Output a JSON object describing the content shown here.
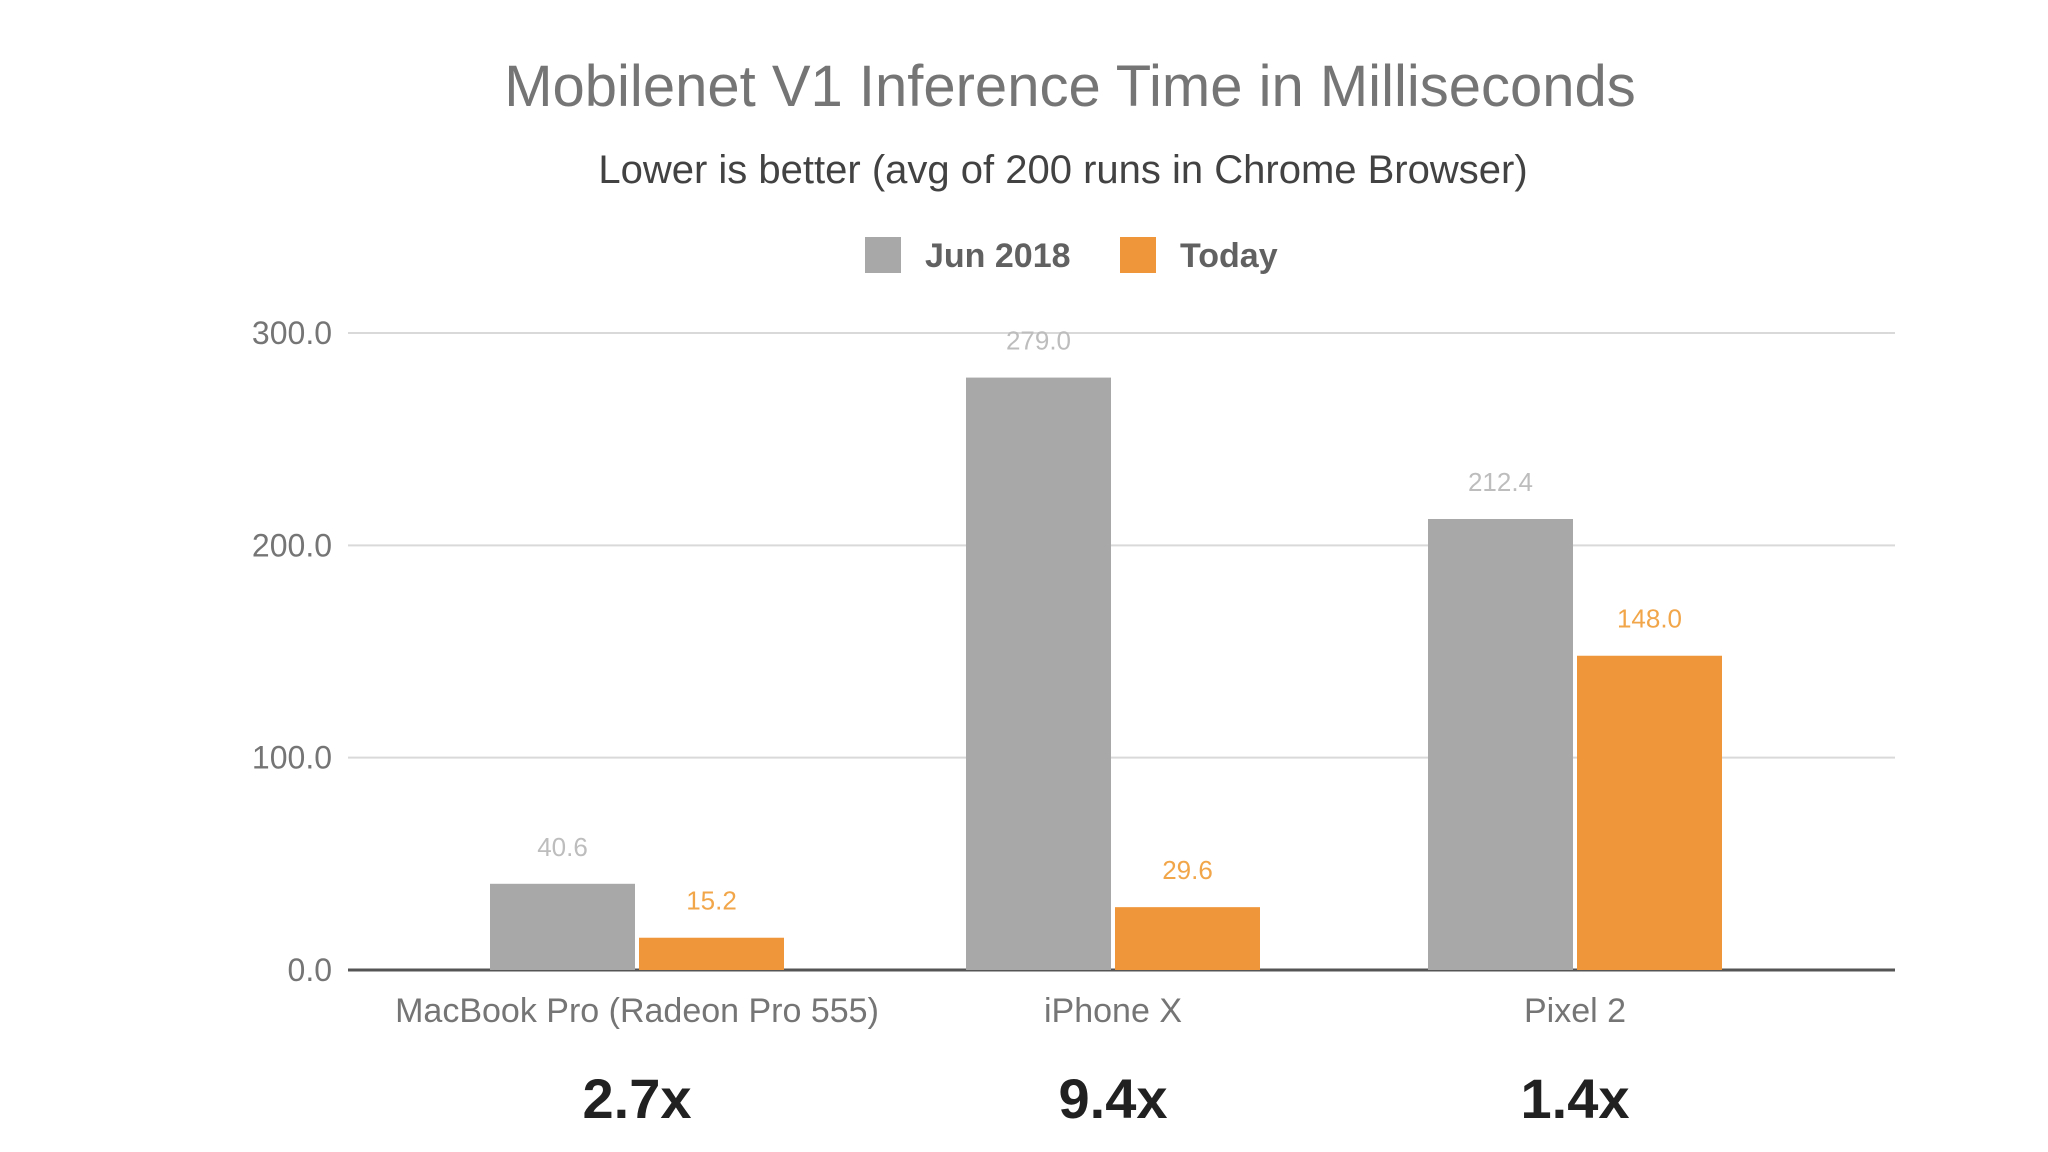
{
  "chart_data": {
    "type": "bar",
    "title": "Mobilenet V1 Inference Time in Milliseconds",
    "subtitle": "Lower is better (avg of 200 runs in Chrome Browser)",
    "xlabel": "",
    "ylabel": "",
    "categories": [
      "MacBook Pro (Radeon Pro 555)",
      "iPhone X",
      "Pixel 2"
    ],
    "series": [
      {
        "name": "Jun 2018",
        "values": [
          40.6,
          279.0,
          212.4
        ],
        "labels": [
          "40.6",
          "279.0",
          "212.4"
        ],
        "color": "#a8a8a8",
        "label_color": "#bdbdbd"
      },
      {
        "name": "Today",
        "values": [
          15.2,
          29.6,
          148.0
        ],
        "labels": [
          "15.2",
          "29.6",
          "148.0"
        ],
        "color": "#f0963a",
        "label_color": "#f2a64a"
      }
    ],
    "ylim": [
      0,
      300
    ],
    "yticks": [
      0,
      100,
      200,
      300
    ],
    "ytick_labels": [
      "0.0",
      "100.0",
      "200.0",
      "300.0"
    ],
    "grid": true,
    "legend": "top-center",
    "annotations": [
      "2.7x",
      "9.4x",
      "1.4x"
    ]
  }
}
